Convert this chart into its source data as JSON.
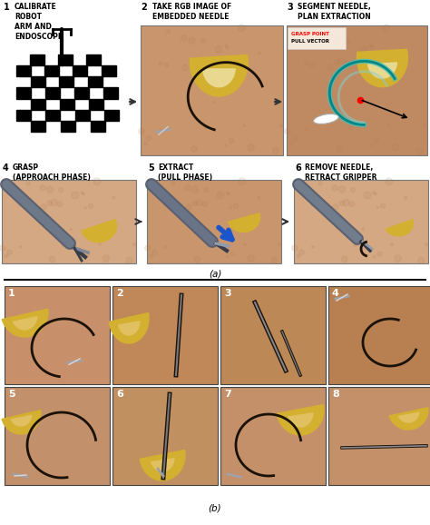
{
  "fig_width": 4.74,
  "fig_height": 5.78,
  "bg_color": "#ffffff",
  "panel_a_label": "(a)",
  "panel_b_label": "(b)",
  "skin_color": "#c8956c",
  "skin2_color": "#bf8a62",
  "skin3_color": "#d4a882",
  "yellow_color": "#d4b030",
  "yellow2_color": "#c8a828",
  "gripper_color": "#5a6070",
  "gripper_dark": "#383c48",
  "needle_color": "#1a1208",
  "needle_silver": "#a0a0a8",
  "teal_color": "#2a9090",
  "label_fontsize": 5.5,
  "num_fontsize": 7.0,
  "caption_fontsize": 7.5,
  "grid_num_fontsize": 8.0,
  "arrow_color": "#333333",
  "separator_color": "#111111",
  "step1_text": "CALIBRATE\nROBOT\nARM AND\nENDOSCOPE",
  "step2_text": "TAKE RGB IMAGE OF\nEMBEDDED NEEDLE",
  "step3_text": "SEGMENT NEEDLE,\nPLAN EXTRACTION",
  "step4_text": "GRASP\n(APPROACH PHASE)",
  "step5_text": "EXTRACT\n(PULL PHASE)",
  "step6_text": "REMOVE NEEDLE,\nRETRACT GRIPPER",
  "grasp_point_text": "GRASP POINT",
  "pull_vector_text": "PULL VECTOR"
}
